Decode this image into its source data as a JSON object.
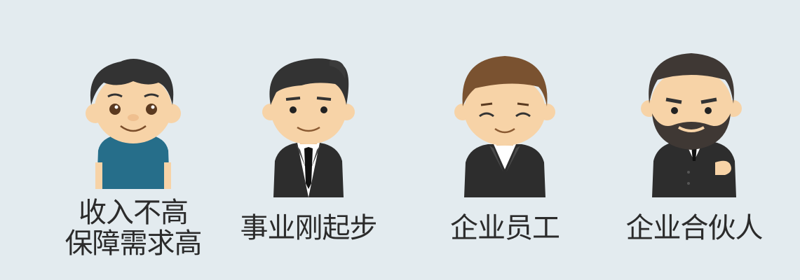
{
  "personas": [
    {
      "line1": "收入不高",
      "line2": "保障需求高",
      "icon": "young-man-icon"
    },
    {
      "line1": "事业刚起步",
      "icon": "businessman-tie-icon"
    },
    {
      "line1": "企业员工",
      "icon": "office-employee-icon"
    },
    {
      "line1": "企业合伙人",
      "icon": "bearded-partner-icon"
    }
  ],
  "colors": {
    "background": "#e3ebef",
    "skin": "#f7d3a7",
    "dark_hair": "#333333",
    "brown_hair": "#7a5230",
    "blue_shirt": "#266e8a",
    "suit": "#2d2d2d"
  }
}
